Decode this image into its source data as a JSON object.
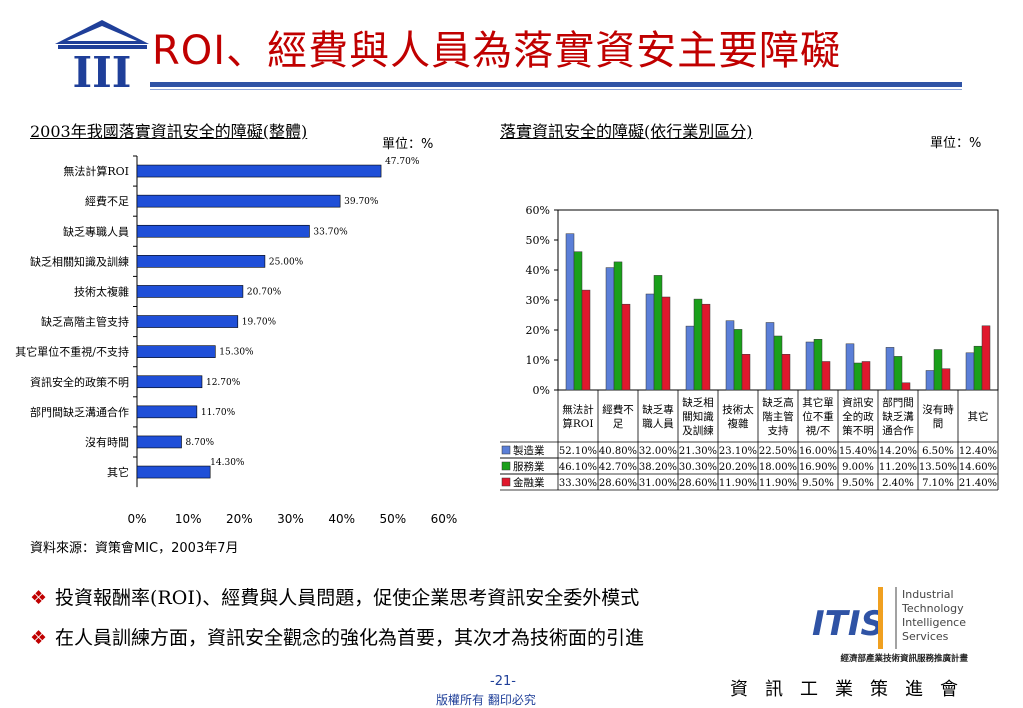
{
  "slide": {
    "title": "ROI、經費與人員為落實資安主要障礙",
    "source": "資料來源：資策會MIC，2003年7月",
    "bullet_mark": "❖",
    "bullets": [
      "投資報酬率(ROI)、經費與人員問題，促使企業思考資訊安全委外模式",
      "在人員訓練方面，資訊安全觀念的強化為首要，其次才為技術面的引進"
    ],
    "page_number": "-21-",
    "copyright": "版權所有 翻印必究",
    "organization": "資訊工業策進會",
    "itis_logo": {
      "mark": "ITIS",
      "lines": [
        "Industrial",
        "Technology",
        "Intelligence",
        "Services"
      ],
      "subtitle": "經濟部產業技術資訊服務推廣計畫"
    },
    "logo": "III"
  },
  "colors": {
    "title_red": "#c00000",
    "bar_blue": "#1f4fd8",
    "manufacturing": "#5b7fd8",
    "service": "#1aa01a",
    "finance": "#e0182d",
    "rule_blue": "#2f53a5"
  },
  "chart_data": [
    {
      "type": "bar",
      "orientation": "horizontal",
      "title": "2003年我國落實資訊安全的障礙(整體)",
      "unit_label": "單位：%",
      "categories": [
        "無法計算ROI",
        "經費不足",
        "缺乏專職人員",
        "缺乏相關知識及訓練",
        "技術太複雜",
        "缺乏高階主管支持",
        "其它單位不重視/不支持",
        "資訊安全的政策不明",
        "部門間缺乏溝通合作",
        "沒有時間",
        "其它"
      ],
      "values": [
        47.7,
        39.7,
        33.7,
        25.0,
        20.7,
        19.7,
        15.3,
        12.7,
        11.7,
        8.7,
        14.3
      ],
      "value_labels": [
        "47.70%",
        "39.70%",
        "33.70%",
        "25.00%",
        "20.70%",
        "19.70%",
        "15.30%",
        "12.70%",
        "11.70%",
        "8.70%",
        "14.30%"
      ],
      "xlim": [
        0,
        60
      ],
      "x_ticks": [
        "0%",
        "10%",
        "20%",
        "30%",
        "40%",
        "50%",
        "60%"
      ]
    },
    {
      "type": "bar",
      "title": "落實資訊安全的障礙(依行業別區分)",
      "unit_label": "單位：%",
      "categories": [
        "無法計算ROI",
        "經費不足",
        "缺乏專職人員",
        "缺乏相關知識及訓練",
        "技術太複雜",
        "缺乏高階主管支持",
        "其它單位不重視/不",
        "資訊安全的政策不明",
        "部門間缺乏溝通合作",
        "沒有時間",
        "其它"
      ],
      "category_label_lines": [
        [
          "無法計",
          "算ROI"
        ],
        [
          "經費不",
          "足"
        ],
        [
          "缺乏專",
          "職人員"
        ],
        [
          "缺乏相",
          "關知識",
          "及訓練"
        ],
        [
          "技術太",
          "複雜"
        ],
        [
          "缺乏高",
          "階主管",
          "支持"
        ],
        [
          "其它單",
          "位不重",
          "視/不"
        ],
        [
          "資訊安",
          "全的政",
          "策不明"
        ],
        [
          "部門間",
          "缺乏溝",
          "通合作"
        ],
        [
          "沒有時",
          "間"
        ],
        [
          "其它"
        ]
      ],
      "series": [
        {
          "name": "製造業",
          "values": [
            52.1,
            40.8,
            32.0,
            21.3,
            23.1,
            22.5,
            16.0,
            15.4,
            14.2,
            6.5,
            12.4
          ],
          "labels": [
            "52.10%",
            "40.80%",
            "32.00%",
            "21.30%",
            "23.10%",
            "22.50%",
            "16.00%",
            "15.40%",
            "14.20%",
            "6.50%",
            "12.40%"
          ]
        },
        {
          "name": "服務業",
          "values": [
            46.1,
            42.7,
            38.2,
            30.3,
            20.2,
            18.0,
            16.9,
            9.0,
            11.2,
            13.5,
            14.6
          ],
          "labels": [
            "46.10%",
            "42.70%",
            "38.20%",
            "30.30%",
            "20.20%",
            "18.00%",
            "16.90%",
            "9.00%",
            "11.20%",
            "13.50%",
            "14.60%"
          ]
        },
        {
          "name": "金融業",
          "values": [
            33.3,
            28.6,
            31.0,
            28.6,
            11.9,
            11.9,
            9.5,
            9.5,
            2.4,
            7.1,
            21.4
          ],
          "labels": [
            "33.30%",
            "28.60%",
            "31.00%",
            "28.60%",
            "11.90%",
            "11.90%",
            "9.50%",
            "9.50%",
            "2.40%",
            "7.10%",
            "21.40%"
          ]
        }
      ],
      "ylim": [
        0,
        60
      ],
      "y_ticks": [
        "0%",
        "10%",
        "20%",
        "30%",
        "40%",
        "50%",
        "60%"
      ],
      "data_table": true
    }
  ]
}
